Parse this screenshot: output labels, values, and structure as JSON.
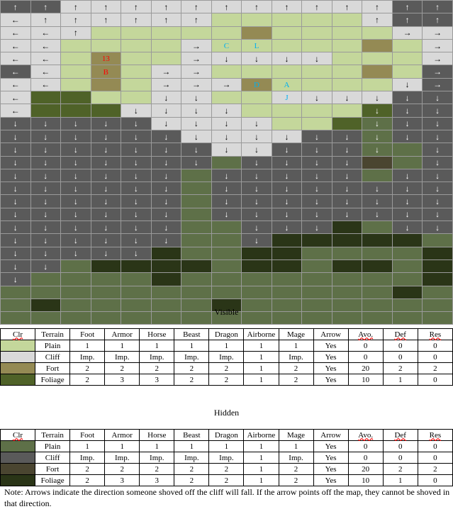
{
  "colors": {
    "P": "#c4d79b",
    "C": "#d9d9d9",
    "F": "#948a54",
    "G": "#4f6228",
    "hP": "#5e7048",
    "hC": "#5a5a5a",
    "hF": "#4a4530",
    "hG": "#2a3517"
  },
  "arrows": {
    "u": "↑",
    "d": "↓",
    "l": "←",
    "r": "→"
  },
  "map": [
    [
      "hC:u",
      "hC:u",
      "C:u",
      "C:u",
      "C:u",
      "C:u",
      "C:u",
      "C:u",
      "C:u",
      "C:u",
      "C:u",
      "C:u",
      "C:u",
      "hC:u",
      "hC:u"
    ],
    [
      "C:l",
      "C:u",
      "C:u",
      "C:u",
      "C:u",
      "C:u",
      "C:u",
      "P",
      "P",
      "P",
      "P",
      "P",
      "C:u",
      "hC:u",
      "hC:u"
    ],
    [
      "C:l",
      "C:l",
      "C:u",
      "P",
      "P",
      "P",
      "P",
      "P",
      "F",
      "P",
      "P",
      "P",
      "P",
      "C:r",
      "C:r"
    ],
    [
      "C:l",
      "C:l",
      "P",
      "P",
      "P",
      "P",
      "C:r",
      "P:|C",
      "P:|L",
      "P",
      "P",
      "P",
      "F",
      "P",
      "C:r"
    ],
    [
      "C:l",
      "C:l",
      "P",
      "F:|13",
      "P",
      "P",
      "C:r",
      "C:d",
      "C:d",
      "C:d",
      "C:d",
      "P",
      "P",
      "P",
      "C:r"
    ],
    [
      "hC:l",
      "C:l",
      "P",
      "F:|B",
      "P",
      "C:r",
      "C:r",
      "P",
      "P",
      "P",
      "P",
      "P",
      "F",
      "P",
      "hC:r"
    ],
    [
      "C:l",
      "C:l",
      "P",
      "F",
      "P",
      "C:r",
      "C:r",
      "C:r",
      "F:|D",
      "P:|A",
      "P",
      "P",
      "P",
      "C:d",
      "hC:r"
    ],
    [
      "C:l",
      "G",
      "G",
      "P",
      "P",
      "C:d",
      "C:d",
      "P",
      "P",
      "C:|J",
      "C:d",
      "C:d",
      "C:d",
      "hC:d",
      "hC:d"
    ],
    [
      "C:l",
      "G",
      "G",
      "G",
      "C:d",
      "C:d",
      "C:d",
      "C:d",
      "P",
      "P",
      "P",
      "P",
      "G:d",
      "hC:d",
      "hC:d"
    ],
    [
      "hC:d",
      "hC:d",
      "hC:d",
      "hC:d",
      "hC:d",
      "C:d",
      "C:d",
      "C:d",
      "C:d",
      "P",
      "P",
      "G",
      "hP:d",
      "hC:d",
      "hC:d"
    ],
    [
      "hC:d",
      "hC:d",
      "hC:d",
      "hC:d",
      "hC:d",
      "hC:d",
      "C:d",
      "C:d",
      "C:d",
      "C:d",
      "hC:d",
      "hC:d",
      "hP:d",
      "hC:d",
      "hC:d"
    ],
    [
      "hC:d",
      "hC:d",
      "hC:d",
      "hC:d",
      "hC:d",
      "hC:d",
      "hC:d",
      "C:d",
      "C:d",
      "hC:d",
      "hC:d",
      "hC:d",
      "hP:d",
      "hP",
      "hC:d"
    ],
    [
      "hC:d",
      "hC:d",
      "hC:d",
      "hC:d",
      "hC:d",
      "hC:d",
      "hC:d",
      "hP",
      "hC:d",
      "hC:d",
      "hC:d",
      "hC:d",
      "hF",
      "hP",
      "hC:d"
    ],
    [
      "hC:d",
      "hC:d",
      "hC:d",
      "hC:d",
      "hC:d",
      "hC:d",
      "hP",
      "hC:d",
      "hC:d",
      "hC:d",
      "hC:d",
      "hC:d",
      "hP",
      "hC:d",
      "hC:d"
    ],
    [
      "hC:d",
      "hC:d",
      "hC:d",
      "hC:d",
      "hC:d",
      "hC:d",
      "hP",
      "hC:d",
      "hC:d",
      "hC:d",
      "hC:d",
      "hC:d",
      "hC:d",
      "hC:d",
      "hC:d"
    ],
    [
      "hC:d",
      "hC:d",
      "hC:d",
      "hC:d",
      "hC:d",
      "hC:d",
      "hP",
      "hC:d",
      "hC:d",
      "hC:d",
      "hC:d",
      "hC:d",
      "hC:d",
      "hC:d",
      "hC:d"
    ],
    [
      "hC:d",
      "hC:d",
      "hC:d",
      "hC:d",
      "hC:d",
      "hC:d",
      "hP",
      "hC:d",
      "hC:d",
      "hC:d",
      "hC:d",
      "hC:d",
      "hC:d",
      "hC:d",
      "hC:d"
    ],
    [
      "hC:d",
      "hC:d",
      "hC:d",
      "hC:d",
      "hC:d",
      "hC:d",
      "hP",
      "hP",
      "hC:d",
      "hC:d",
      "hC:d",
      "hG",
      "hP",
      "hC:d",
      "hC:d"
    ],
    [
      "hC:d",
      "hC:d",
      "hC:d",
      "hC:d",
      "hC:d",
      "hC:d",
      "hP",
      "hP",
      "hC:d",
      "hG",
      "hG",
      "hG",
      "hG",
      "hG",
      "hP"
    ],
    [
      "hC:d",
      "hC:d",
      "hC:d",
      "hC:d",
      "hC:d",
      "hG",
      "hP",
      "hP",
      "hG",
      "hG",
      "hP",
      "hP",
      "hP",
      "hP",
      "hG"
    ],
    [
      "hC:d",
      "hC:d",
      "hP",
      "hG",
      "hG",
      "hG",
      "hG",
      "hP",
      "hG",
      "hG",
      "hP",
      "hG",
      "hG",
      "hP",
      "hG"
    ],
    [
      "hC:d",
      "hP",
      "hP",
      "hP",
      "hP",
      "hG",
      "hP",
      "hP",
      "hP",
      "hP",
      "hP",
      "hP",
      "hP",
      "hP",
      "hG"
    ],
    [
      "hP",
      "hP",
      "hP",
      "hP",
      "hP",
      "hP",
      "hP",
      "hP",
      "hP",
      "hP",
      "hP",
      "hP",
      "hP",
      "hG",
      "hP"
    ],
    [
      "hP",
      "hG",
      "hP",
      "hP",
      "hP",
      "hP",
      "hP",
      "hG",
      "hP",
      "hP",
      "hP",
      "hP",
      "hP",
      "hP",
      "hP"
    ],
    [
      "hP",
      "hP",
      "hP",
      "hP",
      "hP",
      "hP",
      "hP",
      "hP",
      "hP",
      "hP",
      "hP",
      "hP",
      "hP",
      "hP",
      "hP"
    ]
  ],
  "headers": [
    "Clr",
    "Terrain",
    "Foot",
    "Armor",
    "Horse",
    "Beast",
    "Dragon",
    "Airborne",
    "Mage",
    "Arrow",
    "Avo.",
    "Def",
    "Res"
  ],
  "visible": {
    "title": "Visible",
    "rows": [
      {
        "clr": "P",
        "cells": [
          "Plain",
          "1",
          "1",
          "1",
          "1",
          "1",
          "1",
          "1",
          "Yes",
          "0",
          "0",
          "0"
        ]
      },
      {
        "clr": "C",
        "cells": [
          "Cliff",
          "Imp.",
          "Imp.",
          "Imp.",
          "Imp.",
          "Imp.",
          "1",
          "Imp.",
          "Yes",
          "0",
          "0",
          "0"
        ]
      },
      {
        "clr": "F",
        "cells": [
          "Fort",
          "2",
          "2",
          "2",
          "2",
          "2",
          "1",
          "2",
          "Yes",
          "20",
          "2",
          "2"
        ]
      },
      {
        "clr": "G",
        "cells": [
          "Foliage",
          "2",
          "3",
          "3",
          "2",
          "2",
          "1",
          "2",
          "Yes",
          "10",
          "1",
          "0"
        ]
      }
    ]
  },
  "hidden": {
    "title": "Hidden",
    "rows": [
      {
        "clr": "hP",
        "cells": [
          "Plain",
          "1",
          "1",
          "1",
          "1",
          "1",
          "1",
          "1",
          "Yes",
          "0",
          "0",
          "0"
        ]
      },
      {
        "clr": "hC",
        "cells": [
          "Cliff",
          "Imp.",
          "Imp.",
          "Imp.",
          "Imp.",
          "Imp.",
          "1",
          "Imp.",
          "Yes",
          "0",
          "0",
          "0"
        ]
      },
      {
        "clr": "hF",
        "cells": [
          "Fort",
          "2",
          "2",
          "2",
          "2",
          "2",
          "1",
          "2",
          "Yes",
          "20",
          "2",
          "2"
        ]
      },
      {
        "clr": "hG",
        "cells": [
          "Foliage",
          "2",
          "3",
          "3",
          "2",
          "2",
          "1",
          "2",
          "Yes",
          "10",
          "1",
          "0"
        ]
      }
    ]
  },
  "note": "Note: Arrows indicate the direction someone shoved off the cliff will fall. If the arrow points off the map, they cannot be shoved in that direction."
}
